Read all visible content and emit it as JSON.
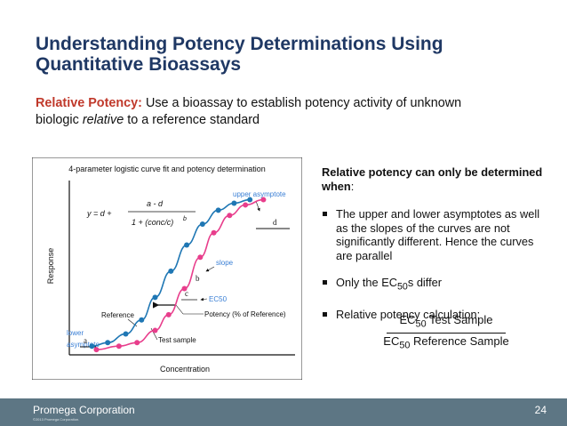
{
  "slide": {
    "title_line1": "Understanding Potency Determinations Using",
    "title_line2": "Quantitative Bioassays",
    "subtitle_lead": "Relative Potency:",
    "subtitle_rest1": " Use a bioassay to establish potency activity of unknown",
    "subtitle_line2_a": "biologic ",
    "subtitle_line2_em": "relative",
    "subtitle_line2_b": " to a reference standard"
  },
  "chart": {
    "title": "4-parameter logistic curve fit and potency determination",
    "ylabel": "Response",
    "xlabel": "Concentration",
    "eq_lhs": "y = d +",
    "eq_num": "a - d",
    "eq_den": "1 + (conc/c)",
    "eq_exp": "b",
    "labels": {
      "upper": "upper asymptote",
      "d": "d",
      "slope": "slope",
      "b": "b",
      "c": "c",
      "ec50": "EC50",
      "potency": "Potency (% of Reference)",
      "reference": "Reference",
      "test": "Test sample",
      "lower1": "lower",
      "lower2": "asymptote",
      "a": "a"
    }
  },
  "chart_data": {
    "type": "scatter",
    "title": "4-parameter logistic curve fit and potency determination",
    "xlabel": "Concentration",
    "ylabel": "Response",
    "series": [
      {
        "name": "Reference",
        "color": "#1f77b4",
        "points": [
          [
            0.1,
            0.05
          ],
          [
            0.17,
            0.07
          ],
          [
            0.25,
            0.12
          ],
          [
            0.32,
            0.2
          ],
          [
            0.38,
            0.33
          ],
          [
            0.45,
            0.48
          ],
          [
            0.52,
            0.63
          ],
          [
            0.59,
            0.75
          ],
          [
            0.66,
            0.83
          ],
          [
            0.73,
            0.87
          ],
          [
            0.8,
            0.89
          ]
        ]
      },
      {
        "name": "Test sample",
        "color": "#e83e8c",
        "points": [
          [
            0.12,
            0.03
          ],
          [
            0.22,
            0.05
          ],
          [
            0.3,
            0.07
          ],
          [
            0.38,
            0.14
          ],
          [
            0.44,
            0.23
          ],
          [
            0.51,
            0.38
          ],
          [
            0.58,
            0.56
          ],
          [
            0.64,
            0.7
          ],
          [
            0.71,
            0.8
          ],
          [
            0.78,
            0.86
          ],
          [
            0.86,
            0.89
          ]
        ]
      }
    ]
  },
  "right": {
    "heading": "Relative potency can only be determined when",
    "heading_colon": ":",
    "bullet1": "The upper and lower asymptotes as well as the slopes of the curves are not significantly different. Hence the curves are parallel",
    "bullet2_a": "Only the EC",
    "bullet2_sub": "50",
    "bullet2_b": "s differ",
    "bullet3": "Relative potency calculation:",
    "num_a": "EC",
    "num_sub": "50",
    "num_b": " Test Sample",
    "den_a": "EC",
    "den_sub": "50",
    "den_b": " Reference Sample"
  },
  "footer": {
    "company": "Promega Corporation",
    "copyright": "©2013 Promega Corporation.",
    "page": "24"
  },
  "colors": {
    "title": "#1f3864",
    "accent_red": "#c0392b",
    "reference_blue": "#1f77b4",
    "test_magenta": "#e83e8c",
    "annot_blue": "#3a7fd5",
    "footer_bg": "#5d7684"
  }
}
